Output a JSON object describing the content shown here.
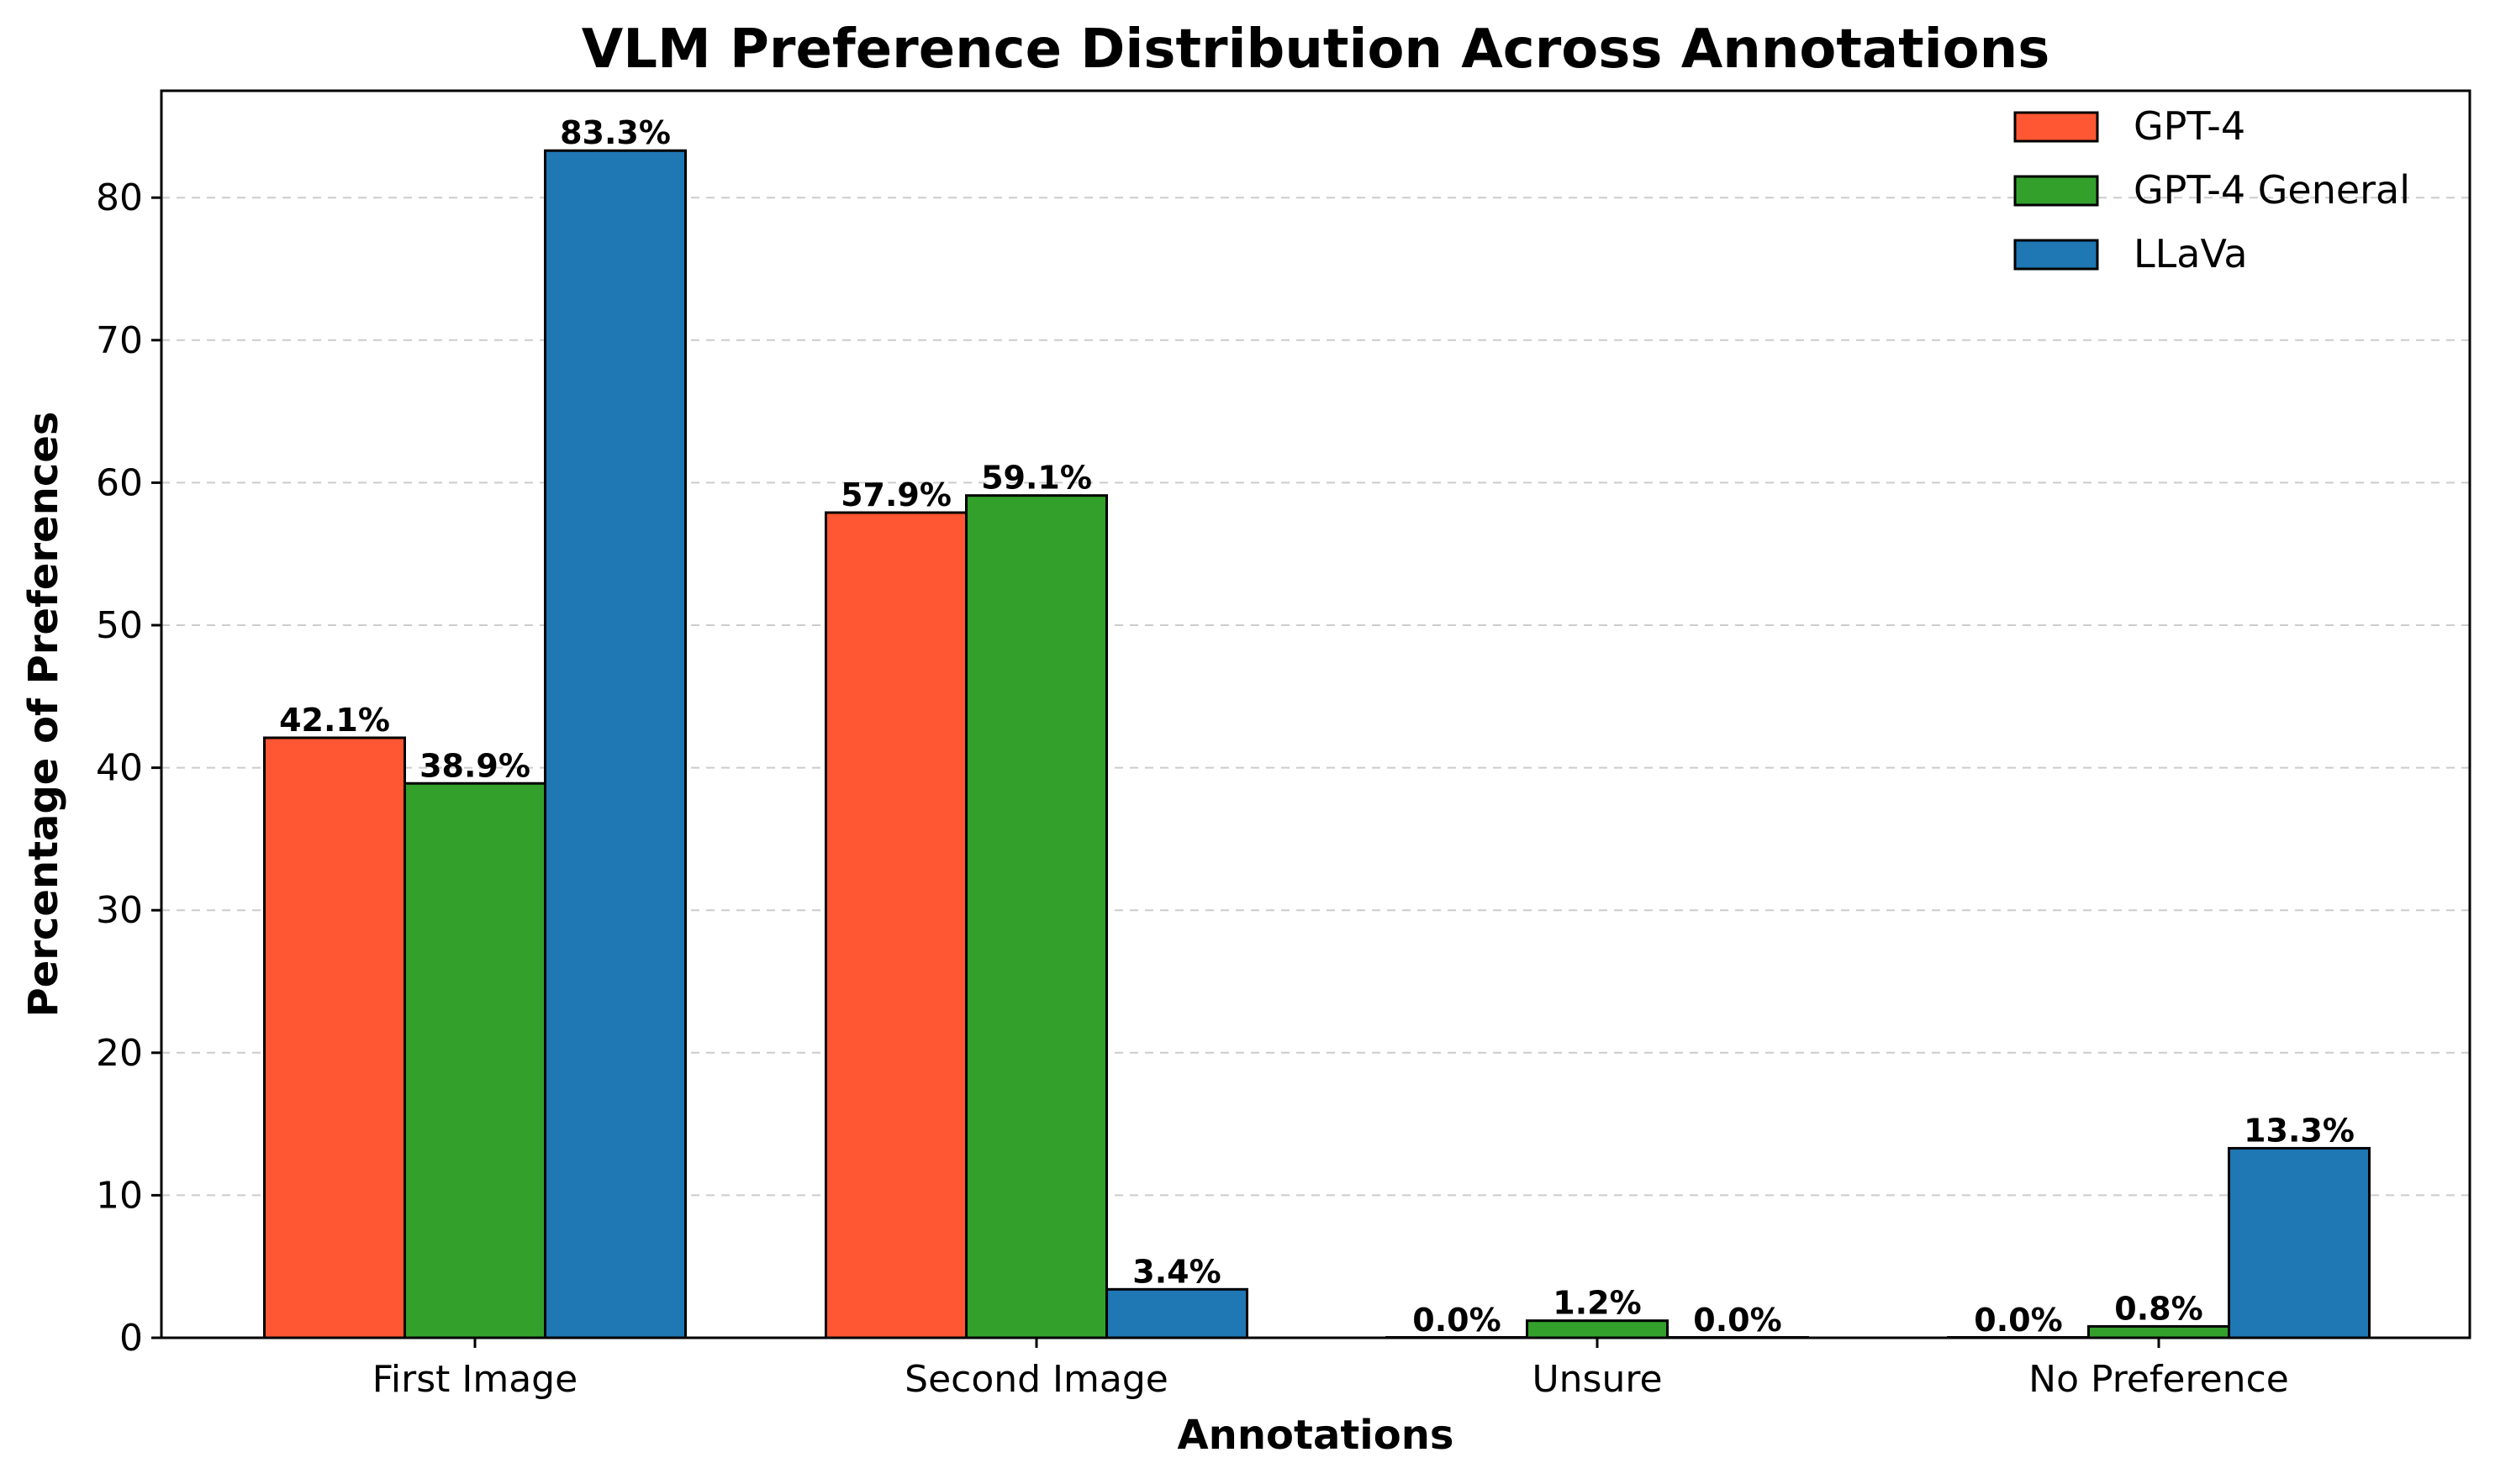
{
  "chart_data": {
    "type": "bar",
    "title": "VLM Preference Distribution Across Annotations",
    "xlabel": "Annotations",
    "ylabel": "Percentage of Preferences",
    "categories": [
      "First Image",
      "Second Image",
      "Unsure",
      "No Preference"
    ],
    "series": [
      {
        "name": "GPT-4",
        "color": "#ff5733",
        "values": [
          42.1,
          57.9,
          0.0,
          0.0
        ],
        "labels": [
          "42.1%",
          "57.9%",
          "0.0%",
          "0.0%"
        ]
      },
      {
        "name": "GPT-4 General",
        "color": "#33a02c",
        "values": [
          38.9,
          59.1,
          1.2,
          0.8
        ],
        "labels": [
          "38.9%",
          "59.1%",
          "1.2%",
          "0.8%"
        ]
      },
      {
        "name": "LLaVa",
        "color": "#1f77b4",
        "values": [
          83.3,
          3.4,
          0.0,
          13.3
        ],
        "labels": [
          "83.3%",
          "3.4%",
          "0.0%",
          "13.3%"
        ]
      }
    ],
    "yticks": [
      "0",
      "10",
      "20",
      "30",
      "40",
      "50",
      "60",
      "70",
      "80"
    ],
    "ylim": [
      0,
      87.5
    ],
    "grid": "y-dashed",
    "legend": "top-right"
  }
}
